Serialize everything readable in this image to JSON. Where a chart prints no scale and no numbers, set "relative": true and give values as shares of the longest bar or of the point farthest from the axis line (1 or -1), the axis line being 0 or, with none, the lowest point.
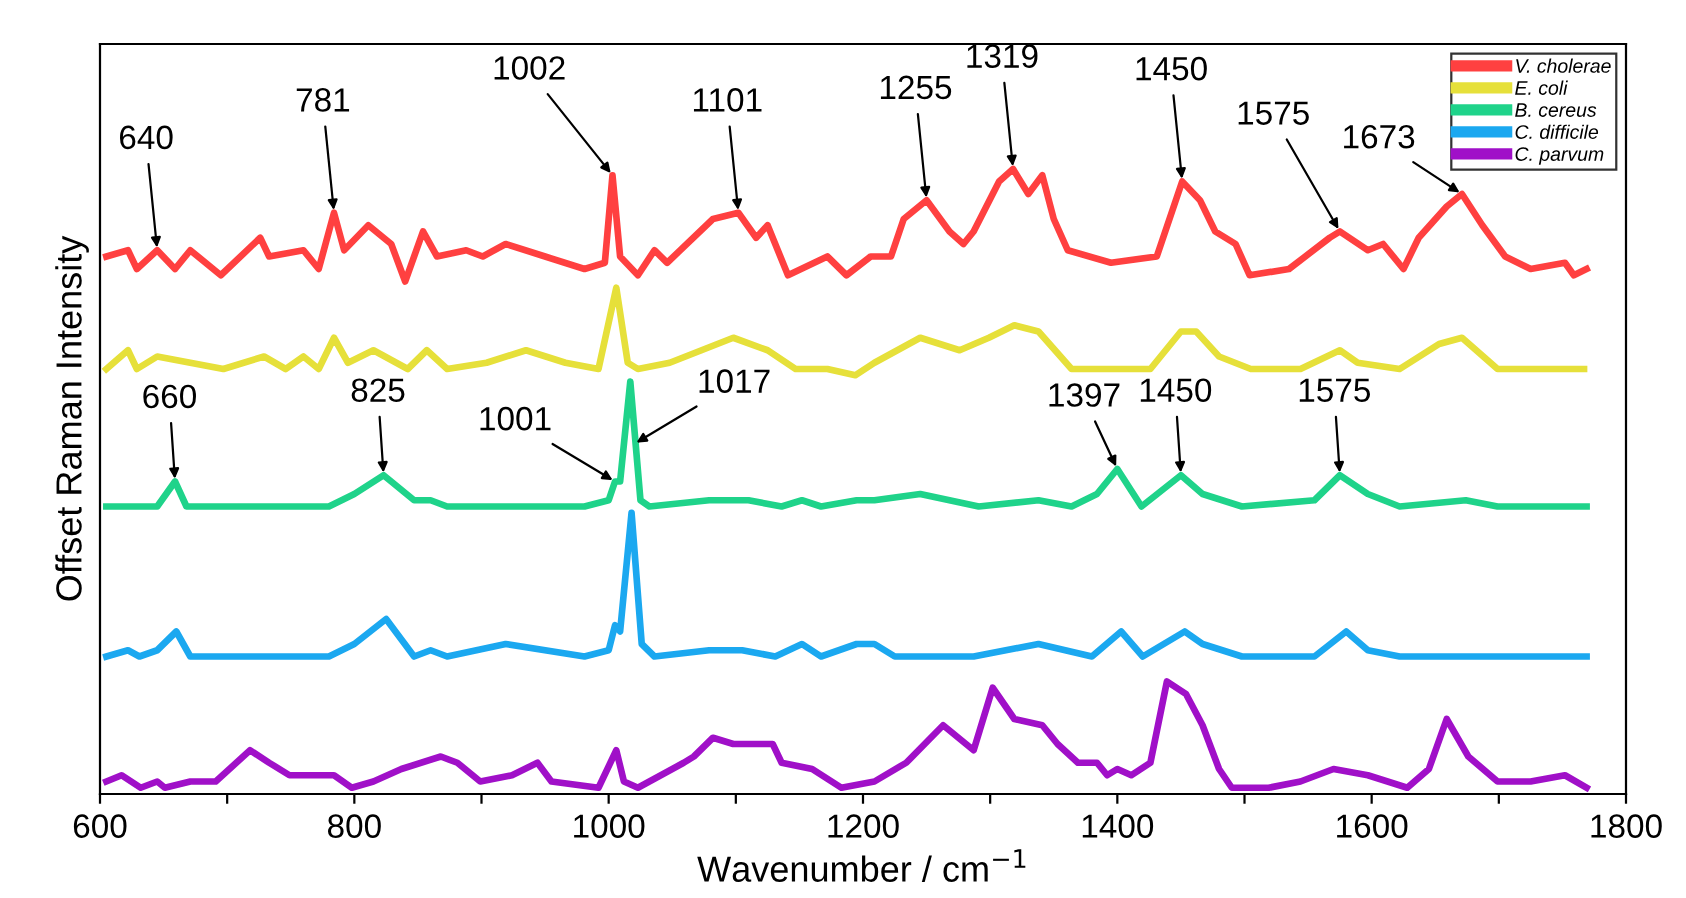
{
  "chart_data": {
    "type": "line",
    "relative": true,
    "xlabel": "Wavenumber / cm$^{−1}$",
    "ylabel": "Offset Raman Intensity",
    "xlim": [
      600,
      1800
    ],
    "xticks": [
      600,
      {
        "value": 700,
        "label": null
      },
      800,
      {
        "value": 900,
        "label": null
      },
      1000,
      {
        "value": 1100,
        "label": null
      },
      1200,
      {
        "value": 1300,
        "label": null
      },
      1400,
      {
        "value": 1500,
        "label": null
      },
      1600,
      {
        "value": 1700,
        "label": null
      },
      1800
    ],
    "grid": false,
    "legend": "top right",
    "line_style": "solid",
    "marker": "none",
    "series": [
      {
        "name": "V. cholerae",
        "color": "#ff4040",
        "x": [
          605,
          622,
          629,
          645,
          659,
          671,
          695,
          726,
          733,
          760,
          772,
          784,
          792,
          811,
          829,
          840,
          854,
          865,
          888,
          901,
          919,
          950,
          981,
          997,
          1003,
          1009,
          1023,
          1036,
          1046,
          1082,
          1102,
          1116,
          1125,
          1141,
          1172,
          1187,
          1206,
          1222,
          1232,
          1250,
          1268,
          1279,
          1287,
          1307,
          1318,
          1330,
          1341,
          1350,
          1361,
          1395,
          1431,
          1451,
          1465,
          1477,
          1493,
          1504,
          1535,
          1567,
          1575,
          1597,
          1609,
          1625,
          1637,
          1659,
          1671,
          1687,
          1705,
          1725,
          1752,
          1759,
          1769
        ],
        "values": [
          0.86,
          0.87,
          0.84,
          0.87,
          0.84,
          0.87,
          0.83,
          0.89,
          0.86,
          0.87,
          0.84,
          0.93,
          0.87,
          0.91,
          0.88,
          0.82,
          0.9,
          0.86,
          0.87,
          0.86,
          0.88,
          0.86,
          0.84,
          0.85,
          0.99,
          0.86,
          0.83,
          0.87,
          0.85,
          0.92,
          0.93,
          0.89,
          0.91,
          0.83,
          0.86,
          0.83,
          0.86,
          0.86,
          0.92,
          0.95,
          0.9,
          0.88,
          0.9,
          0.98,
          1.0,
          0.96,
          0.99,
          0.92,
          0.87,
          0.85,
          0.86,
          0.98,
          0.95,
          0.9,
          0.88,
          0.83,
          0.84,
          0.89,
          0.9,
          0.87,
          0.88,
          0.84,
          0.89,
          0.94,
          0.96,
          0.91,
          0.86,
          0.84,
          0.85,
          0.83,
          0.84
        ]
      },
      {
        "name": "E. coli",
        "color": "#e6e03a",
        "x": [
          605,
          622,
          629,
          645,
          671,
          697,
          729,
          746,
          760,
          772,
          784,
          795,
          815,
          842,
          857,
          873,
          904,
          935,
          966,
          992,
          1006,
          1015,
          1023,
          1048,
          1098,
          1125,
          1147,
          1172,
          1194,
          1209,
          1245,
          1276,
          1299,
          1319,
          1338,
          1364,
          1389,
          1426,
          1450,
          1462,
          1480,
          1505,
          1544,
          1575,
          1589,
          1622,
          1653,
          1671,
          1699,
          1730,
          1767
        ],
        "values": [
          0.68,
          0.71,
          0.68,
          0.7,
          0.69,
          0.68,
          0.7,
          0.68,
          0.7,
          0.68,
          0.73,
          0.69,
          0.71,
          0.68,
          0.71,
          0.68,
          0.69,
          0.71,
          0.69,
          0.68,
          0.81,
          0.69,
          0.68,
          0.69,
          0.73,
          0.71,
          0.68,
          0.68,
          0.67,
          0.69,
          0.73,
          0.71,
          0.73,
          0.75,
          0.74,
          0.68,
          0.68,
          0.68,
          0.74,
          0.74,
          0.7,
          0.68,
          0.68,
          0.71,
          0.69,
          0.68,
          0.72,
          0.73,
          0.68,
          0.68,
          0.68
        ]
      },
      {
        "name": "B. cereus",
        "color": "#1fd38a",
        "x": [
          605,
          645,
          659,
          668,
          722,
          780,
          800,
          823,
          847,
          860,
          873,
          919,
          981,
          1000,
          1005,
          1009,
          1017,
          1025,
          1032,
          1079,
          1110,
          1136,
          1152,
          1167,
          1195,
          1209,
          1245,
          1291,
          1338,
          1364,
          1384,
          1400,
          1419,
          1450,
          1467,
          1498,
          1555,
          1575,
          1597,
          1622,
          1674,
          1699,
          1769
        ],
        "values": [
          0.46,
          0.46,
          0.5,
          0.46,
          0.46,
          0.46,
          0.48,
          0.51,
          0.47,
          0.47,
          0.46,
          0.46,
          0.46,
          0.47,
          0.5,
          0.5,
          0.66,
          0.47,
          0.46,
          0.47,
          0.47,
          0.46,
          0.47,
          0.46,
          0.47,
          0.47,
          0.48,
          0.46,
          0.47,
          0.46,
          0.48,
          0.52,
          0.46,
          0.51,
          0.48,
          0.46,
          0.47,
          0.51,
          0.48,
          0.46,
          0.47,
          0.46,
          0.46
        ]
      },
      {
        "name": "C. difficile",
        "color": "#1ba8f0",
        "x": [
          605,
          622,
          631,
          645,
          660,
          671,
          722,
          780,
          800,
          825,
          847,
          860,
          873,
          919,
          981,
          1000,
          1005,
          1009,
          1018,
          1026,
          1036,
          1079,
          1105,
          1131,
          1152,
          1167,
          1195,
          1209,
          1225,
          1287,
          1338,
          1380,
          1403,
          1420,
          1453,
          1467,
          1498,
          1555,
          1580,
          1597,
          1622,
          1674,
          1769
        ],
        "values": [
          0.22,
          0.23,
          0.22,
          0.23,
          0.26,
          0.22,
          0.22,
          0.22,
          0.24,
          0.28,
          0.22,
          0.23,
          0.22,
          0.24,
          0.22,
          0.23,
          0.27,
          0.26,
          0.45,
          0.24,
          0.22,
          0.23,
          0.23,
          0.22,
          0.24,
          0.22,
          0.24,
          0.24,
          0.22,
          0.22,
          0.24,
          0.22,
          0.26,
          0.22,
          0.26,
          0.24,
          0.22,
          0.22,
          0.26,
          0.23,
          0.22,
          0.22,
          0.22
        ]
      },
      {
        "name": "C. parvum",
        "color": "#a010c8",
        "x": [
          605,
          617,
          632,
          645,
          651,
          671,
          691,
          718,
          733,
          749,
          784,
          798,
          815,
          837,
          868,
          881,
          899,
          924,
          944,
          955,
          992,
          1006,
          1012,
          1023,
          1059,
          1067,
          1082,
          1098,
          1110,
          1129,
          1136,
          1160,
          1183,
          1209,
          1234,
          1263,
          1287,
          1302,
          1319,
          1341,
          1353,
          1369,
          1384,
          1392,
          1400,
          1411,
          1426,
          1439,
          1454,
          1467,
          1480,
          1490,
          1519,
          1544,
          1570,
          1597,
          1628,
          1645,
          1659,
          1676,
          1699,
          1725,
          1752,
          1769
        ],
        "values": [
          0.02,
          0.03,
          0.01,
          0.02,
          0.01,
          0.02,
          0.02,
          0.07,
          0.05,
          0.03,
          0.03,
          0.01,
          0.02,
          0.04,
          0.06,
          0.05,
          0.02,
          0.03,
          0.05,
          0.02,
          0.01,
          0.07,
          0.02,
          0.01,
          0.05,
          0.06,
          0.09,
          0.08,
          0.08,
          0.08,
          0.05,
          0.04,
          0.01,
          0.02,
          0.05,
          0.11,
          0.07,
          0.17,
          0.12,
          0.11,
          0.08,
          0.05,
          0.05,
          0.03,
          0.04,
          0.03,
          0.05,
          0.18,
          0.16,
          0.11,
          0.04,
          0.01,
          0.01,
          0.02,
          0.04,
          0.03,
          0.01,
          0.04,
          0.12,
          0.06,
          0.02,
          0.02,
          0.03,
          0.01
        ]
      }
    ],
    "annotations": [
      {
        "text": "640",
        "x": 645,
        "y": 0.87
      },
      {
        "text": "781",
        "x": 784,
        "y": 0.93
      },
      {
        "text": "1002",
        "x": 1003,
        "y": 0.99
      },
      {
        "text": "1101",
        "x": 1102,
        "y": 0.93
      },
      {
        "text": "1255",
        "x": 1250,
        "y": 0.95
      },
      {
        "text": "1319",
        "x": 1318,
        "y": 1.0
      },
      {
        "text": "1450",
        "x": 1451,
        "y": 0.98
      },
      {
        "text": "1575",
        "x": 1575,
        "y": 0.9
      },
      {
        "text": "1673",
        "x": 1671,
        "y": 0.96
      },
      {
        "text": "660",
        "x": 659,
        "y": 0.5
      },
      {
        "text": "825",
        "x": 823,
        "y": 0.51
      },
      {
        "text": "1001",
        "x": 1005,
        "y": 0.5
      },
      {
        "text": "1017",
        "x": 1020,
        "y": 0.56
      },
      {
        "text": "1397",
        "x": 1400,
        "y": 0.52
      },
      {
        "text": "1450",
        "x": 1450,
        "y": 0.51
      },
      {
        "text": "1575",
        "x": 1575,
        "y": 0.51
      }
    ]
  }
}
